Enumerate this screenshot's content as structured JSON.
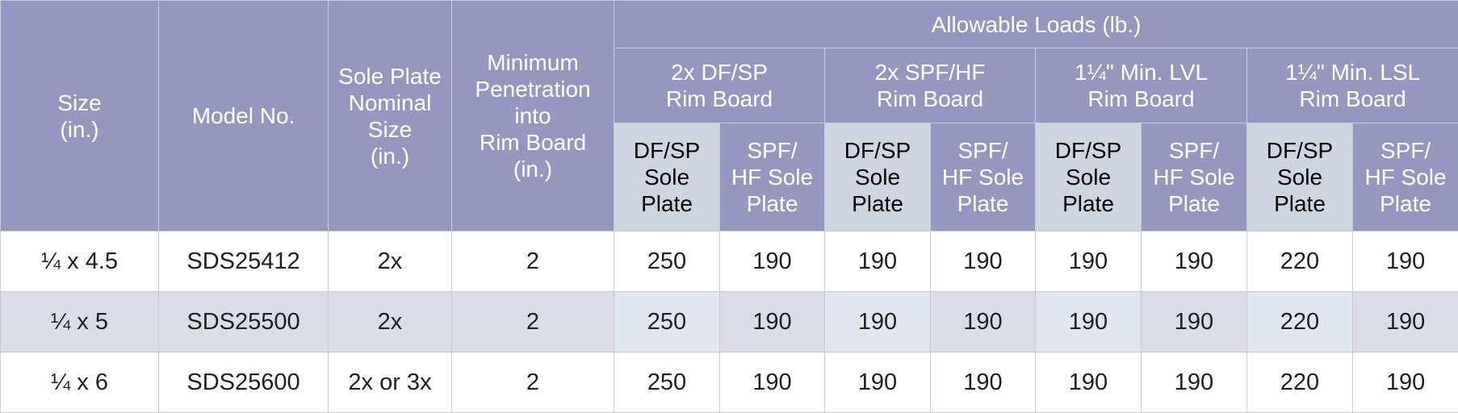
{
  "headers": {
    "size": "Size\n(in.)",
    "model": "Model No.",
    "sole_plate": "Sole Plate\nNominal\nSize\n(in.)",
    "penetration": "Minimum\nPenetration\ninto\nRim Board\n(in.)",
    "allowable": "Allowable Loads (lb.)",
    "groups": [
      "2x DF/SP\nRim Board",
      "2x SPF/HF\nRim Board",
      "1¼\" Min. LVL\nRim Board",
      "1¼\" Min. LSL\nRim Board"
    ],
    "sub_df": "DF/SP\nSole\nPlate",
    "sub_spf": "SPF/\nHF Sole\nPlate"
  },
  "rows": [
    {
      "size": "¼ x 4.5",
      "model": "SDS25412",
      "sole_plate": "2x",
      "penetration": "2",
      "loads": [
        "250",
        "190",
        "190",
        "190",
        "190",
        "190",
        "220",
        "190"
      ]
    },
    {
      "size": "¼ x 5",
      "model": "SDS25500",
      "sole_plate": "2x",
      "penetration": "2",
      "loads": [
        "250",
        "190",
        "190",
        "190",
        "190",
        "190",
        "220",
        "190"
      ]
    },
    {
      "size": "¼ x 6",
      "model": "SDS25600",
      "sole_plate": "2x or 3x",
      "penetration": "2",
      "loads": [
        "250",
        "190",
        "190",
        "190",
        "190",
        "190",
        "220",
        "190"
      ]
    }
  ]
}
